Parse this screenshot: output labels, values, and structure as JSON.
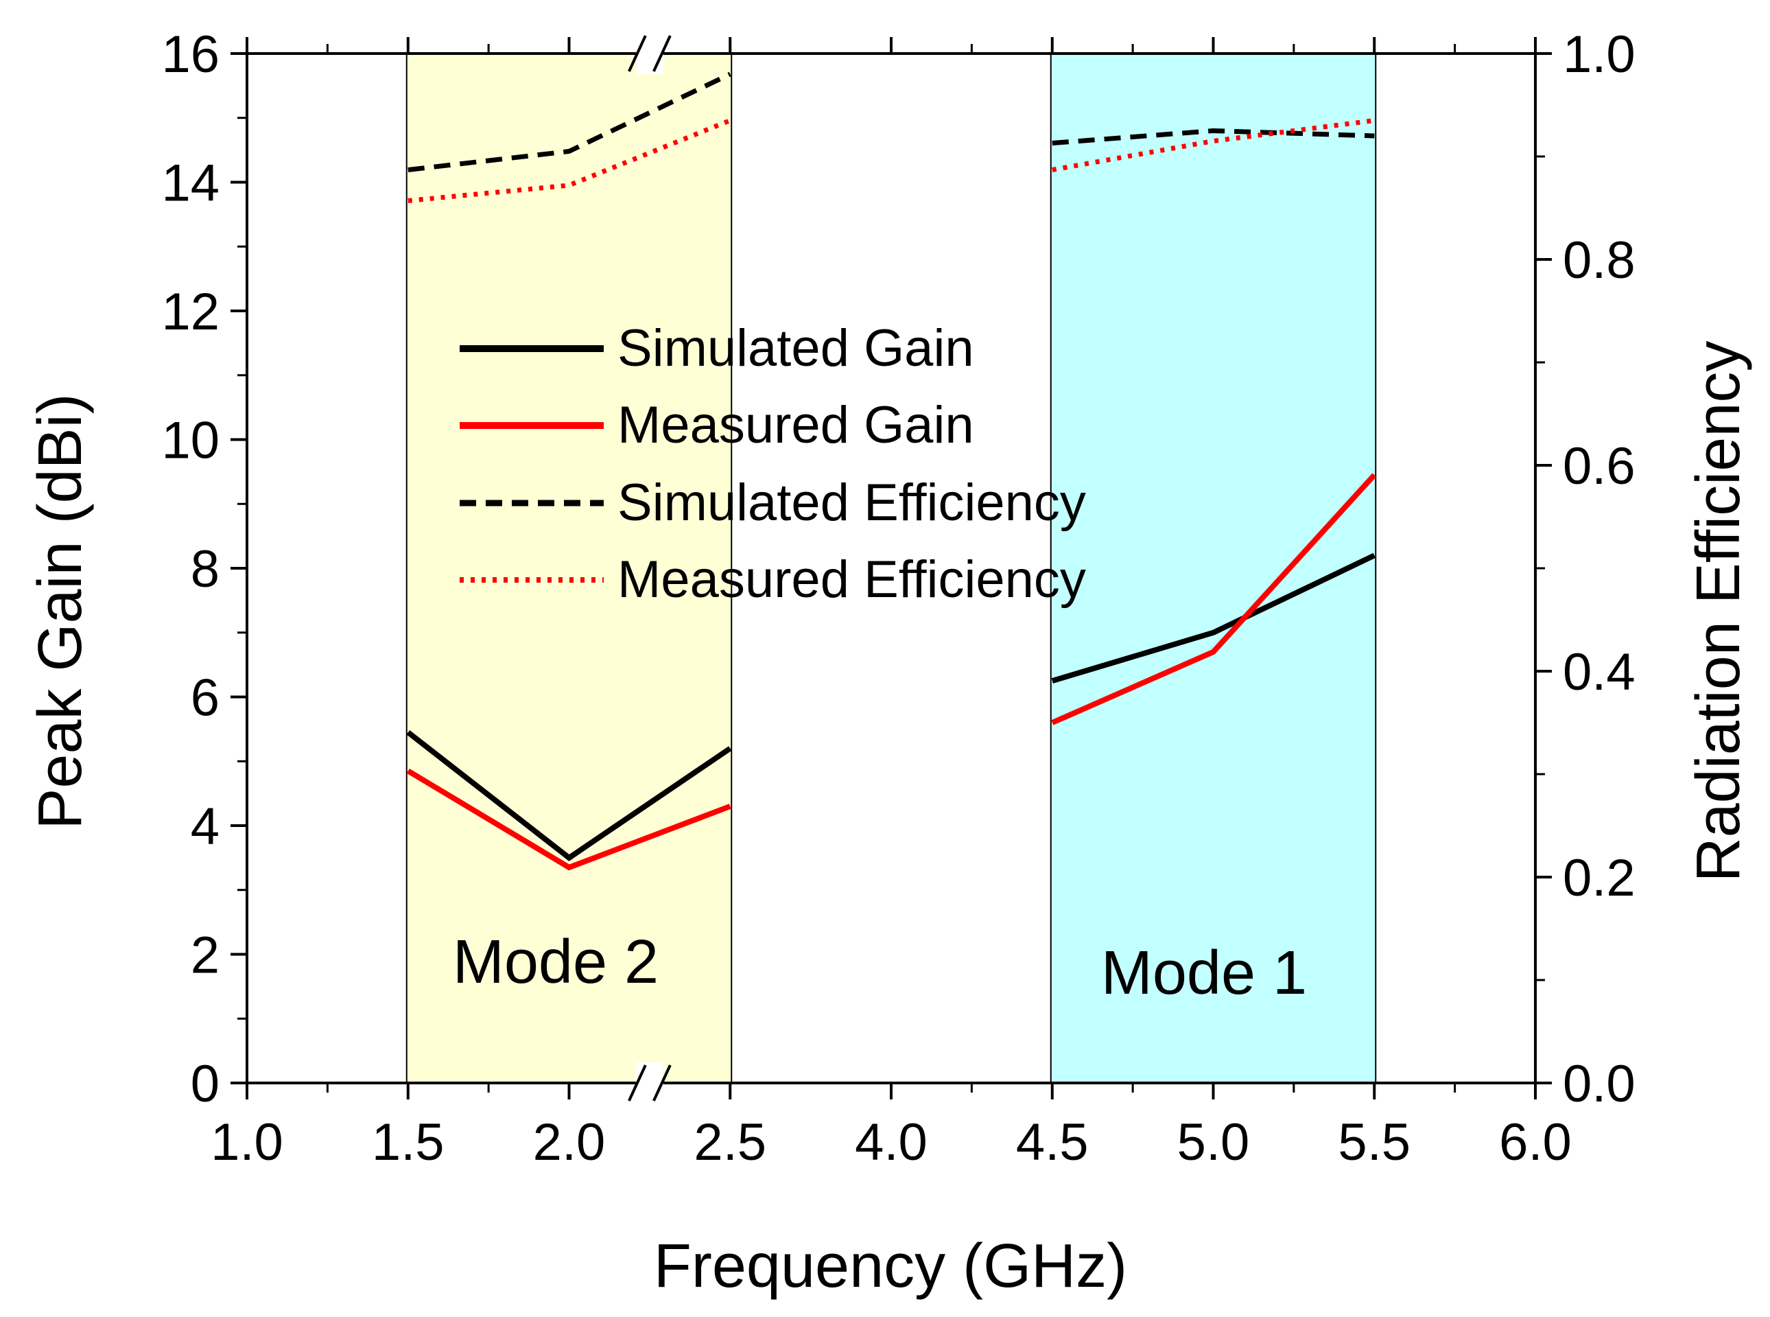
{
  "chart_data": {
    "type": "line",
    "xlabel": "Frequency (GHz)",
    "ylabel_left": "Peak Gain (dBi)",
    "ylabel_right": "Radiation Efficiency",
    "x_ticks": [
      "1.0",
      "1.5",
      "2.0",
      "2.5",
      "4.0",
      "4.5",
      "5.0",
      "5.5",
      "6.0"
    ],
    "y_left_ticks": [
      "0",
      "2",
      "4",
      "6",
      "8",
      "10",
      "12",
      "14",
      "16"
    ],
    "y_right_ticks": [
      "0.0",
      "0.2",
      "0.4",
      "0.6",
      "0.8",
      "1.0"
    ],
    "ylim_left": [
      0,
      16
    ],
    "ylim_right": [
      0,
      1.0
    ],
    "x_axis_break": [
      2.5,
      4.0
    ],
    "grid": false,
    "legend_position": "center-left",
    "regions": [
      {
        "label": "Mode 2",
        "x_range": [
          1.5,
          2.5
        ],
        "color": "#ffffd6"
      },
      {
        "label": "Mode 1",
        "x_range": [
          4.5,
          5.5
        ],
        "color": "#c2ffff"
      }
    ],
    "series": [
      {
        "name": "Simulated Gain",
        "axis": "left",
        "color": "#000000",
        "dash": "solid",
        "segments": [
          {
            "x": [
              1.5,
              2.0,
              2.5
            ],
            "y": [
              5.45,
              3.5,
              5.2
            ]
          },
          {
            "x": [
              4.5,
              5.0,
              5.5
            ],
            "y": [
              6.25,
              7.0,
              8.2
            ]
          }
        ]
      },
      {
        "name": "Measured Gain",
        "axis": "left",
        "color": "#ff0000",
        "dash": "solid",
        "segments": [
          {
            "x": [
              1.5,
              2.0,
              2.5
            ],
            "y": [
              4.85,
              3.35,
              4.3
            ]
          },
          {
            "x": [
              4.5,
              5.0,
              5.5
            ],
            "y": [
              5.6,
              6.7,
              9.45
            ]
          }
        ]
      },
      {
        "name": "Simulated Efficiency",
        "axis": "right",
        "color": "#000000",
        "dash": "dashed",
        "segments": [
          {
            "x": [
              1.5,
              2.0,
              2.5
            ],
            "y": [
              0.887,
              0.905,
              0.98
            ]
          },
          {
            "x": [
              4.5,
              5.0,
              5.5
            ],
            "y": [
              0.913,
              0.925,
              0.92
            ]
          }
        ]
      },
      {
        "name": "Measured Efficiency",
        "axis": "right",
        "color": "#ff0000",
        "dash": "dotted",
        "segments": [
          {
            "x": [
              1.5,
              2.0,
              2.5
            ],
            "y": [
              0.857,
              0.872,
              0.935
            ]
          },
          {
            "x": [
              4.5,
              5.0,
              5.5
            ],
            "y": [
              0.887,
              0.915,
              0.935
            ]
          }
        ]
      }
    ]
  }
}
